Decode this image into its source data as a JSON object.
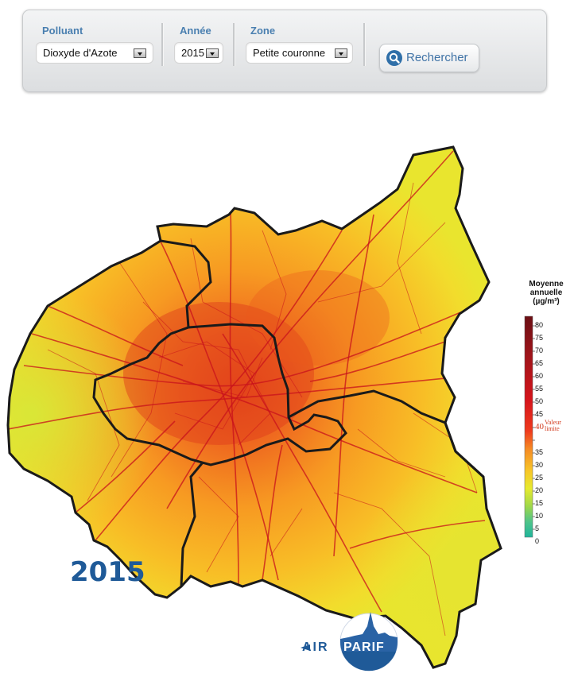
{
  "filters": {
    "pollutant": {
      "label": "Polluant",
      "value": "Dioxyde d'Azote"
    },
    "year": {
      "label": "Année",
      "value": "2015"
    },
    "zone": {
      "label": "Zone",
      "value": "Petite couronne"
    },
    "search_label": "Rechercher"
  },
  "map": {
    "year_label": "2015",
    "legend": {
      "title_lines": [
        "Moyenne",
        "annuelle",
        "(µg/m³)"
      ],
      "ticks": [
        "80",
        "75",
        "70",
        "65",
        "60",
        "55",
        "50",
        "45",
        "40",
        "35",
        "30",
        "25",
        "20",
        "15",
        "10",
        "5",
        "0"
      ],
      "limit_value": "40",
      "limit_label_lines": [
        "Valeur",
        "limite"
      ]
    },
    "logo": {
      "prefix": "AIR",
      "suffix": "PARIF"
    },
    "colors": {
      "accent": "#4a7fb0",
      "brand": "#1f5a98",
      "limit": "#d23b1e"
    }
  }
}
